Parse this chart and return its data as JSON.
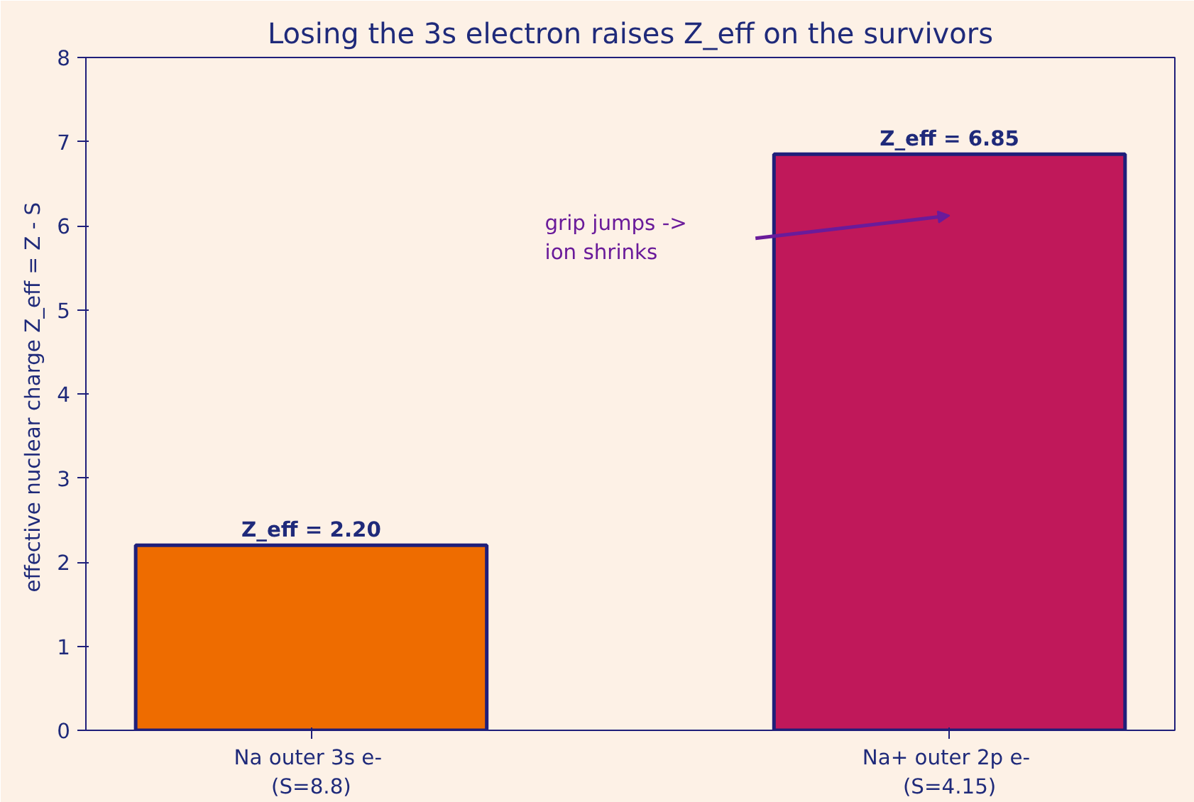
{
  "chart_data": {
    "type": "bar",
    "title": "Losing the 3s electron raises Z_eff on the survivors",
    "ylabel": "effective nuclear charge  Z_eff = Z - S",
    "categories": [
      "Na  outer 3s e-\n(S=8.8)",
      "Na+  outer 2p e-\n(S=4.15)"
    ],
    "values": [
      2.2,
      6.85
    ],
    "colors": [
      "#ee6c00",
      "#c0185a"
    ],
    "value_labels": [
      "Z_eff = 2.20",
      "Z_eff = 6.85"
    ],
    "ylim": [
      0,
      8
    ],
    "yticks": [
      0,
      1,
      2,
      3,
      4,
      5,
      6,
      7,
      8
    ],
    "grid": false,
    "annotations": [
      "grip jumps ->\nion shrinks"
    ]
  }
}
